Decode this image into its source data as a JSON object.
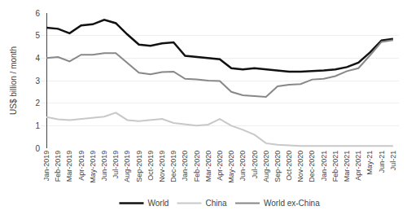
{
  "chart_data": {
    "type": "line",
    "ylabel": "US$ billion / month",
    "categories": [
      "Jan-2019",
      "Feb-2019",
      "Mar-2019",
      "Apr-2019",
      "May-2019",
      "Jun-2019",
      "Jul-2019",
      "Aug-2019",
      "Sep-2019",
      "Oct-2019",
      "Nov-2019",
      "Dec-2019",
      "Jan-2020",
      "Feb-2020",
      "Mar-2020",
      "Apr-2020",
      "May-2020",
      "Jun-2020",
      "Jul-2020",
      "Aug-2020",
      "Sep-2020",
      "Oct-2020",
      "Nov-2020",
      "Dec-2020",
      "Jan-2021",
      "Feb-2021",
      "Mar-2021",
      "Apr-2021",
      "May-21",
      "Jun-21",
      "Jul-21"
    ],
    "series": [
      {
        "name": "World",
        "color": "#111111",
        "values": [
          5.35,
          5.3,
          5.1,
          5.45,
          5.5,
          5.7,
          5.55,
          5.05,
          4.6,
          4.55,
          4.65,
          4.7,
          4.1,
          4.05,
          4.0,
          3.95,
          3.55,
          3.5,
          3.55,
          3.5,
          3.45,
          3.4,
          3.4,
          3.42,
          3.45,
          3.5,
          3.6,
          3.8,
          4.25,
          4.78,
          4.85
        ]
      },
      {
        "name": "China",
        "color": "#c8c8c8",
        "values": [
          1.38,
          1.28,
          1.25,
          1.3,
          1.35,
          1.4,
          1.58,
          1.25,
          1.2,
          1.25,
          1.3,
          1.12,
          1.05,
          1.0,
          1.05,
          1.3,
          1.0,
          0.82,
          0.6,
          0.22,
          0.15,
          0.12,
          0.1,
          0.1,
          0.1,
          0.1,
          0.1,
          0.1,
          0.1,
          0.1,
          0.1
        ]
      },
      {
        "name": "World ex-China",
        "color": "#888888",
        "values": [
          4.0,
          4.05,
          3.85,
          4.15,
          4.15,
          4.22,
          4.22,
          3.8,
          3.35,
          3.28,
          3.38,
          3.4,
          3.08,
          3.05,
          3.0,
          2.98,
          2.5,
          2.35,
          2.32,
          2.28,
          2.75,
          2.82,
          2.85,
          3.05,
          3.08,
          3.2,
          3.42,
          3.55,
          4.12,
          4.72,
          4.8
        ]
      }
    ],
    "ylim": [
      0,
      6
    ],
    "yticks": [
      0,
      1,
      2,
      3,
      4,
      5,
      6
    ],
    "grid": true,
    "legend": "bottom"
  }
}
